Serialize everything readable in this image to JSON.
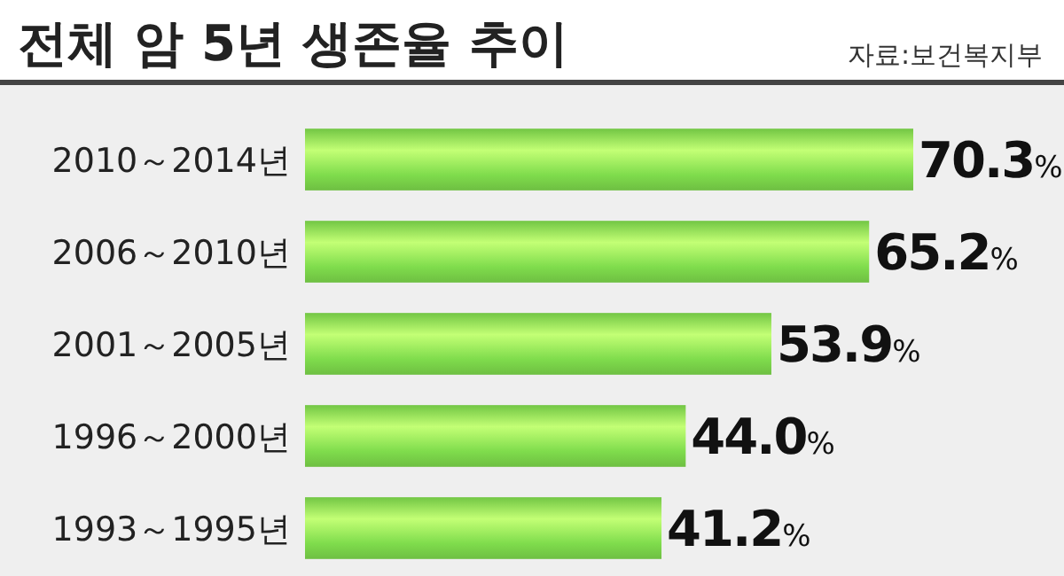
{
  "chart_data": {
    "type": "bar",
    "orientation": "horizontal",
    "title": "전체 암 5년 생존율 추이",
    "annotations": [
      "자료:보건복지부"
    ],
    "categories": [
      "2010～2014년",
      "2006～2010년",
      "2001～2005년",
      "1996～2000년",
      "1993～1995년"
    ],
    "values": [
      70.3,
      65.2,
      53.9,
      44.0,
      41.2
    ],
    "value_labels": [
      "70.3%",
      "65.2%",
      "53.9%",
      "44.0%",
      "41.2%"
    ],
    "color": "#7fdc4c"
  }
}
